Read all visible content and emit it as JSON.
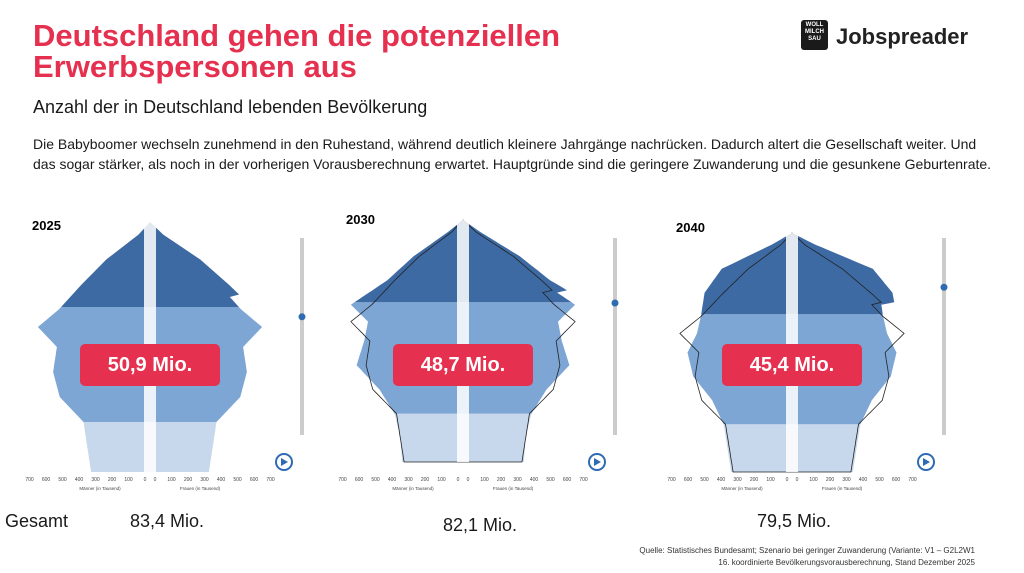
{
  "header": {
    "title": "Deutschland gehen die potenziellen Erwerbspersonen aus",
    "subtitle": "Anzahl der in Deutschland lebenden Bevölkerung",
    "body": "Die Babyboomer wechseln zunehmend in den Ruhestand, während deutlich kleinere Jahrgänge nachrücken. Dadurch altert die Gesellschaft weiter. Und das sogar stärker, als noch in der vorherigen Vorausberechnung erwartet. Hauptgründe sind die geringere Zuwanderung und die gesunkene Geburtenrate."
  },
  "logo": {
    "mark": "WOLL MILCH SAU",
    "brand": "Jobspreader"
  },
  "pyramids": [
    {
      "year": "2025",
      "total_label": "50,9 Mio.",
      "gesamt": "83,4 Mio."
    },
    {
      "year": "2030",
      "total_label": "48,7 Mio.",
      "gesamt": "82,1 Mio."
    },
    {
      "year": "2040",
      "total_label": "45,4 Mio.",
      "gesamt": "79,5 Mio."
    }
  ],
  "axis": {
    "ticks": [
      "700",
      "600",
      "500",
      "400",
      "300",
      "200",
      "100",
      "0",
      "0",
      "100",
      "200",
      "300",
      "400",
      "500",
      "600",
      "700"
    ],
    "men": "Männer (in Tausend)",
    "women": "Frauen (in Tausend)"
  },
  "gesamt_label": "Gesamt",
  "source": [
    "Quelle: Statistisches Bundesamt; Szenario bei geringer Zuwanderung (Variante: V1 – G2L2W1",
    "16. koordinierte Bevölkerungsvorausberechnung, Stand Dezember 2025"
  ]
}
